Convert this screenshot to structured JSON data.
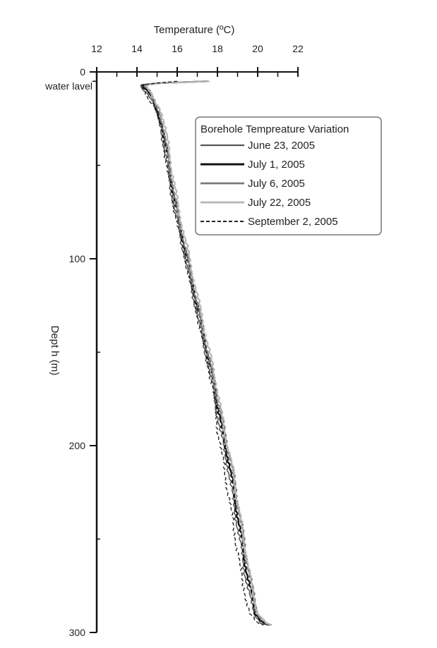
{
  "chart_data": {
    "type": "line",
    "title": "",
    "xlabel": "Temperature (ºC)",
    "ylabel": "Dept h (m)",
    "xlim": [
      12,
      22
    ],
    "ylim": [
      0,
      300
    ],
    "y_inverted": true,
    "x_axis_position": "top",
    "x_ticks": [
      "12",
      "14",
      "16",
      "18",
      "20",
      "22"
    ],
    "y_ticks": [
      "0",
      "100",
      "200",
      "300"
    ],
    "annotation": "water lavel",
    "annotation_depth": 5,
    "grid": false,
    "legend": {
      "title": "Borehole Tempreature Variation",
      "placement": "top-right"
    },
    "series": [
      {
        "name": "June 23, 2005",
        "color": "#555555",
        "style": "solid",
        "points": [
          [
            17.5,
            5
          ],
          [
            15.0,
            6
          ],
          [
            14.3,
            7
          ],
          [
            14.2,
            8
          ],
          [
            14.4,
            10
          ],
          [
            14.7,
            15
          ],
          [
            15.0,
            20
          ],
          [
            15.2,
            30
          ],
          [
            15.5,
            50
          ],
          [
            15.8,
            70
          ],
          [
            16.2,
            90
          ],
          [
            16.6,
            110
          ],
          [
            17.0,
            130
          ],
          [
            17.4,
            150
          ],
          [
            17.8,
            170
          ],
          [
            18.1,
            190
          ],
          [
            18.5,
            210
          ],
          [
            18.8,
            230
          ],
          [
            19.1,
            250
          ],
          [
            19.4,
            270
          ],
          [
            19.8,
            290
          ],
          [
            20.2,
            295
          ],
          [
            20.5,
            296
          ]
        ]
      },
      {
        "name": "July 1, 2005",
        "color": "#111111",
        "style": "solid",
        "points": [
          [
            17.5,
            5
          ],
          [
            15.1,
            6
          ],
          [
            14.3,
            7
          ],
          [
            14.3,
            8
          ],
          [
            14.5,
            10
          ],
          [
            14.8,
            15
          ],
          [
            15.0,
            20
          ],
          [
            15.3,
            30
          ],
          [
            15.6,
            50
          ],
          [
            15.9,
            70
          ],
          [
            16.3,
            90
          ],
          [
            16.7,
            110
          ],
          [
            17.1,
            130
          ],
          [
            17.5,
            150
          ],
          [
            17.9,
            170
          ],
          [
            18.2,
            190
          ],
          [
            18.6,
            210
          ],
          [
            18.9,
            230
          ],
          [
            19.2,
            250
          ],
          [
            19.5,
            270
          ],
          [
            19.9,
            290
          ],
          [
            20.3,
            295
          ],
          [
            20.6,
            296
          ]
        ]
      },
      {
        "name": "July 6, 2005",
        "color": "#7a7a7a",
        "style": "solid",
        "points": [
          [
            17.5,
            5
          ],
          [
            15.0,
            6
          ],
          [
            14.4,
            7
          ],
          [
            14.4,
            8
          ],
          [
            14.6,
            10
          ],
          [
            14.8,
            15
          ],
          [
            15.1,
            20
          ],
          [
            15.3,
            30
          ],
          [
            15.6,
            50
          ],
          [
            15.9,
            70
          ],
          [
            16.3,
            90
          ],
          [
            16.7,
            110
          ],
          [
            17.1,
            130
          ],
          [
            17.5,
            150
          ],
          [
            17.9,
            170
          ],
          [
            18.3,
            190
          ],
          [
            18.7,
            210
          ],
          [
            19.0,
            230
          ],
          [
            19.3,
            250
          ],
          [
            19.6,
            270
          ],
          [
            20.0,
            290
          ],
          [
            20.4,
            295
          ],
          [
            20.7,
            296
          ]
        ]
      },
      {
        "name": "July 22, 2005",
        "color": "#b5b5b5",
        "style": "solid",
        "points": [
          [
            17.6,
            5
          ],
          [
            15.2,
            6
          ],
          [
            14.5,
            7
          ],
          [
            14.5,
            8
          ],
          [
            14.6,
            10
          ],
          [
            14.9,
            15
          ],
          [
            15.1,
            20
          ],
          [
            15.4,
            30
          ],
          [
            15.7,
            50
          ],
          [
            16.0,
            70
          ],
          [
            16.4,
            90
          ],
          [
            16.8,
            110
          ],
          [
            17.2,
            130
          ],
          [
            17.6,
            150
          ],
          [
            18.0,
            170
          ],
          [
            18.3,
            190
          ],
          [
            18.7,
            210
          ],
          [
            19.0,
            230
          ],
          [
            19.3,
            250
          ],
          [
            19.6,
            270
          ],
          [
            20.0,
            290
          ],
          [
            20.4,
            295
          ],
          [
            20.7,
            296
          ]
        ]
      },
      {
        "name": "September 2, 2005",
        "color": "#222222",
        "style": "dashed",
        "points": [
          [
            16.0,
            5
          ],
          [
            15.0,
            6
          ],
          [
            14.2,
            7
          ],
          [
            14.2,
            8
          ],
          [
            14.4,
            10
          ],
          [
            14.6,
            15
          ],
          [
            14.9,
            20
          ],
          [
            15.2,
            30
          ],
          [
            15.5,
            50
          ],
          [
            15.8,
            70
          ],
          [
            16.2,
            90
          ],
          [
            16.6,
            110
          ],
          [
            17.0,
            130
          ],
          [
            17.4,
            150
          ],
          [
            17.8,
            170
          ],
          [
            18.0,
            190
          ],
          [
            18.3,
            210
          ],
          [
            18.6,
            230
          ],
          [
            18.9,
            250
          ],
          [
            19.2,
            270
          ],
          [
            19.6,
            290
          ],
          [
            20.0,
            295
          ],
          [
            20.3,
            296
          ]
        ]
      }
    ]
  }
}
